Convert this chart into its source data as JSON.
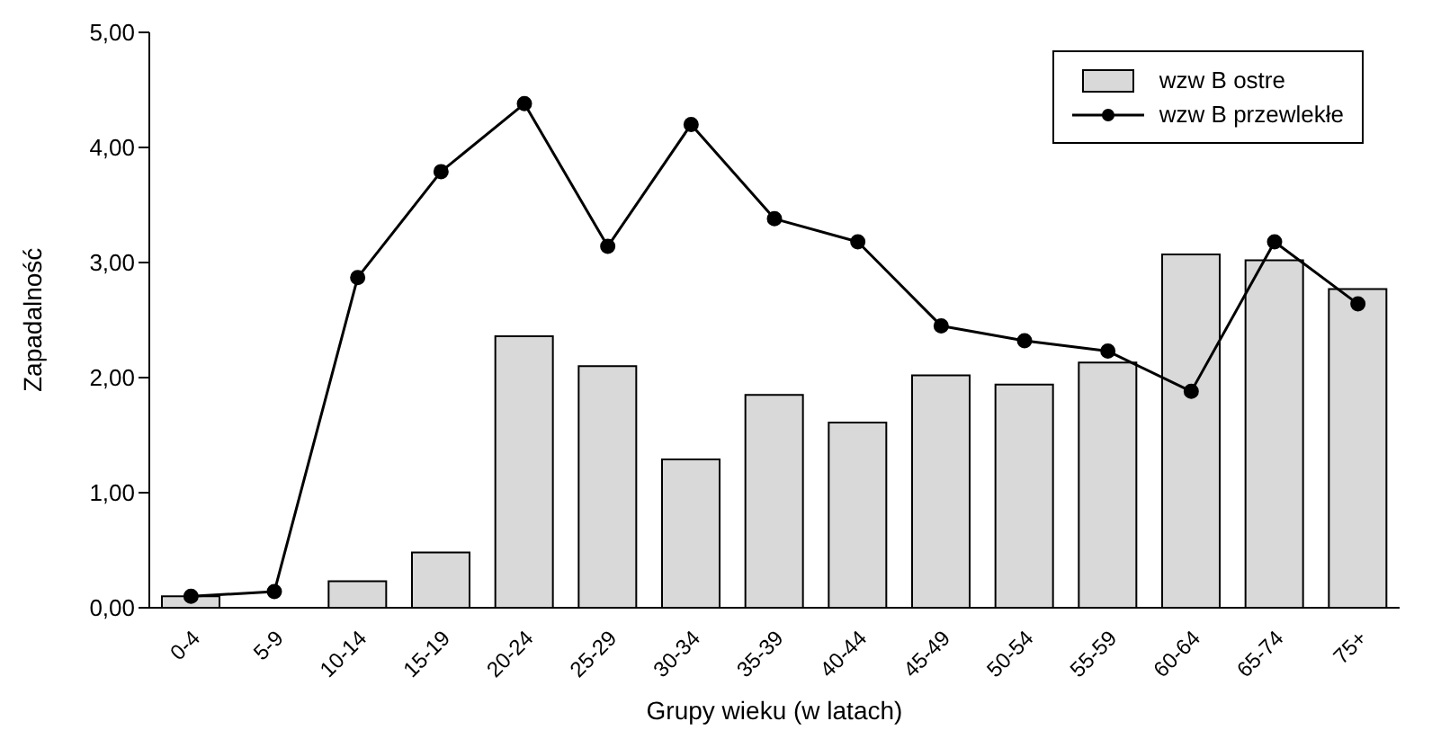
{
  "chart_data": {
    "type": "bar",
    "xlabel": "Grupy wieku (w latach)",
    "ylabel": "Zapadalność",
    "categories": [
      "0-4",
      "5-9",
      "10-14",
      "15-19",
      "20-24",
      "25-29",
      "30-34",
      "35-39",
      "40-44",
      "45-49",
      "50-54",
      "55-59",
      "60-64",
      "65-74",
      "75+"
    ],
    "series": [
      {
        "name": "wzw B ostre",
        "color": "#d9d9d9",
        "values": [
          0.1,
          0,
          0.23,
          0.48,
          2.36,
          2.1,
          1.29,
          1.85,
          1.61,
          2.02,
          1.94,
          2.13,
          3.07,
          3.02,
          2.77
        ]
      },
      {
        "name": "wzw B przewlekłe",
        "type": "line",
        "color": "#000000",
        "values": [
          0.1,
          0.14,
          2.87,
          3.79,
          4.38,
          3.14,
          4.2,
          3.38,
          3.18,
          2.45,
          2.32,
          2.23,
          1.88,
          3.18,
          2.64
        ]
      }
    ],
    "ylim": [
      0,
      5
    ],
    "yticks": [
      {
        "value": 0,
        "label": "0,00"
      },
      {
        "value": 1,
        "label": "1,00"
      },
      {
        "value": 2,
        "label": "2,00"
      },
      {
        "value": 3,
        "label": "3,00"
      },
      {
        "value": 4,
        "label": "4,00"
      },
      {
        "value": 5,
        "label": "5,00"
      }
    ],
    "grid": false,
    "legend": "top right",
    "marker": "circle",
    "line_style": "solid"
  }
}
